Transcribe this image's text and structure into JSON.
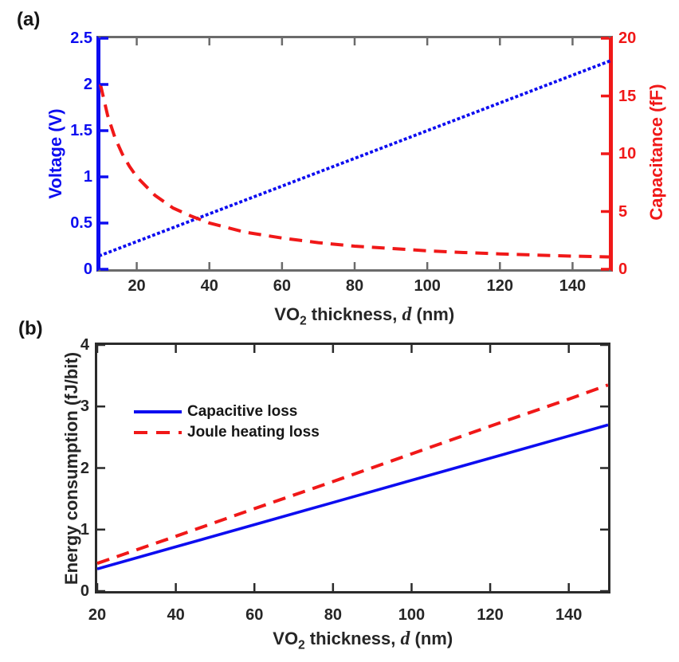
{
  "figure": {
    "background": "#ffffff"
  },
  "colors": {
    "blue": "#0D0DF0",
    "red": "#F01818",
    "panel_a_frame": "#6B6B6B",
    "panel_b_frame": "#2B2B2B",
    "text": "#262626"
  },
  "panels": {
    "a": {
      "label": "(a)",
      "ylabel_left": "Voltage (V)",
      "ylabel_right": "Capacitance (fF)",
      "xlabel": {
        "pre": "VO",
        "sub": "2",
        "mid": " thickness, ",
        "var": "d",
        "post": " (nm)"
      }
    },
    "b": {
      "label": "(b)",
      "ylabel": "Energy consumption (fJ/bit)",
      "xlabel": {
        "pre": "VO",
        "sub": "2",
        "mid": " thickness, ",
        "var": "d",
        "post": " (nm)"
      }
    }
  },
  "chart_data": [
    {
      "type": "line",
      "panel": "a",
      "title": "",
      "xlabel": "VO2 thickness, d (nm)",
      "xlim": [
        10,
        150
      ],
      "xticks": [
        20,
        40,
        60,
        80,
        100,
        120,
        140
      ],
      "grid": false,
      "left_axis": {
        "label": "Voltage (V)",
        "color": "blue",
        "ylim": [
          0,
          2.5
        ],
        "yticks": [
          0,
          0.5,
          1,
          1.5,
          2,
          2.5
        ]
      },
      "right_axis": {
        "label": "Capacitance (fF)",
        "color": "red",
        "ylim": [
          0,
          20
        ],
        "yticks": [
          0,
          5,
          10,
          15,
          20
        ]
      },
      "series": [
        {
          "name": "Voltage",
          "axis": "left",
          "color": "blue",
          "style": "dotted",
          "x": [
            10,
            20,
            30,
            40,
            50,
            60,
            70,
            80,
            90,
            100,
            110,
            120,
            130,
            140,
            150
          ],
          "y": [
            0.15,
            0.3,
            0.45,
            0.6,
            0.75,
            0.9,
            1.05,
            1.2,
            1.35,
            1.5,
            1.65,
            1.8,
            1.95,
            2.1,
            2.25
          ]
        },
        {
          "name": "Capacitance",
          "axis": "right",
          "color": "red",
          "style": "dashed",
          "x": [
            10,
            12,
            14,
            16,
            18,
            20,
            25,
            30,
            35,
            40,
            45,
            50,
            60,
            70,
            80,
            90,
            100,
            110,
            120,
            130,
            140,
            150
          ],
          "y": [
            16,
            13.3,
            11.4,
            10,
            8.9,
            8,
            6.4,
            5.3,
            4.6,
            4,
            3.6,
            3.2,
            2.7,
            2.3,
            2,
            1.8,
            1.6,
            1.45,
            1.33,
            1.23,
            1.14,
            1.07
          ]
        }
      ]
    },
    {
      "type": "line",
      "panel": "b",
      "title": "",
      "xlabel": "VO2 thickness, d (nm)",
      "ylabel": "Energy consumption (fJ/bit)",
      "xlim": [
        20,
        150
      ],
      "xticks": [
        20,
        40,
        60,
        80,
        100,
        120,
        140
      ],
      "ylim": [
        0,
        4
      ],
      "yticks": [
        0,
        1,
        2,
        3,
        4
      ],
      "grid": false,
      "legend_position": "upper left inside",
      "series": [
        {
          "name": "Capacitive loss",
          "color": "blue",
          "style": "solid",
          "x": [
            20,
            40,
            60,
            80,
            100,
            120,
            140,
            150
          ],
          "y": [
            0.36,
            0.72,
            1.08,
            1.44,
            1.8,
            2.16,
            2.52,
            2.7
          ]
        },
        {
          "name": "Joule heating loss",
          "color": "red",
          "style": "dashed",
          "x": [
            20,
            40,
            60,
            80,
            100,
            120,
            140,
            150
          ],
          "y": [
            0.45,
            0.89,
            1.34,
            1.78,
            2.23,
            2.68,
            3.12,
            3.35
          ]
        }
      ]
    }
  ]
}
